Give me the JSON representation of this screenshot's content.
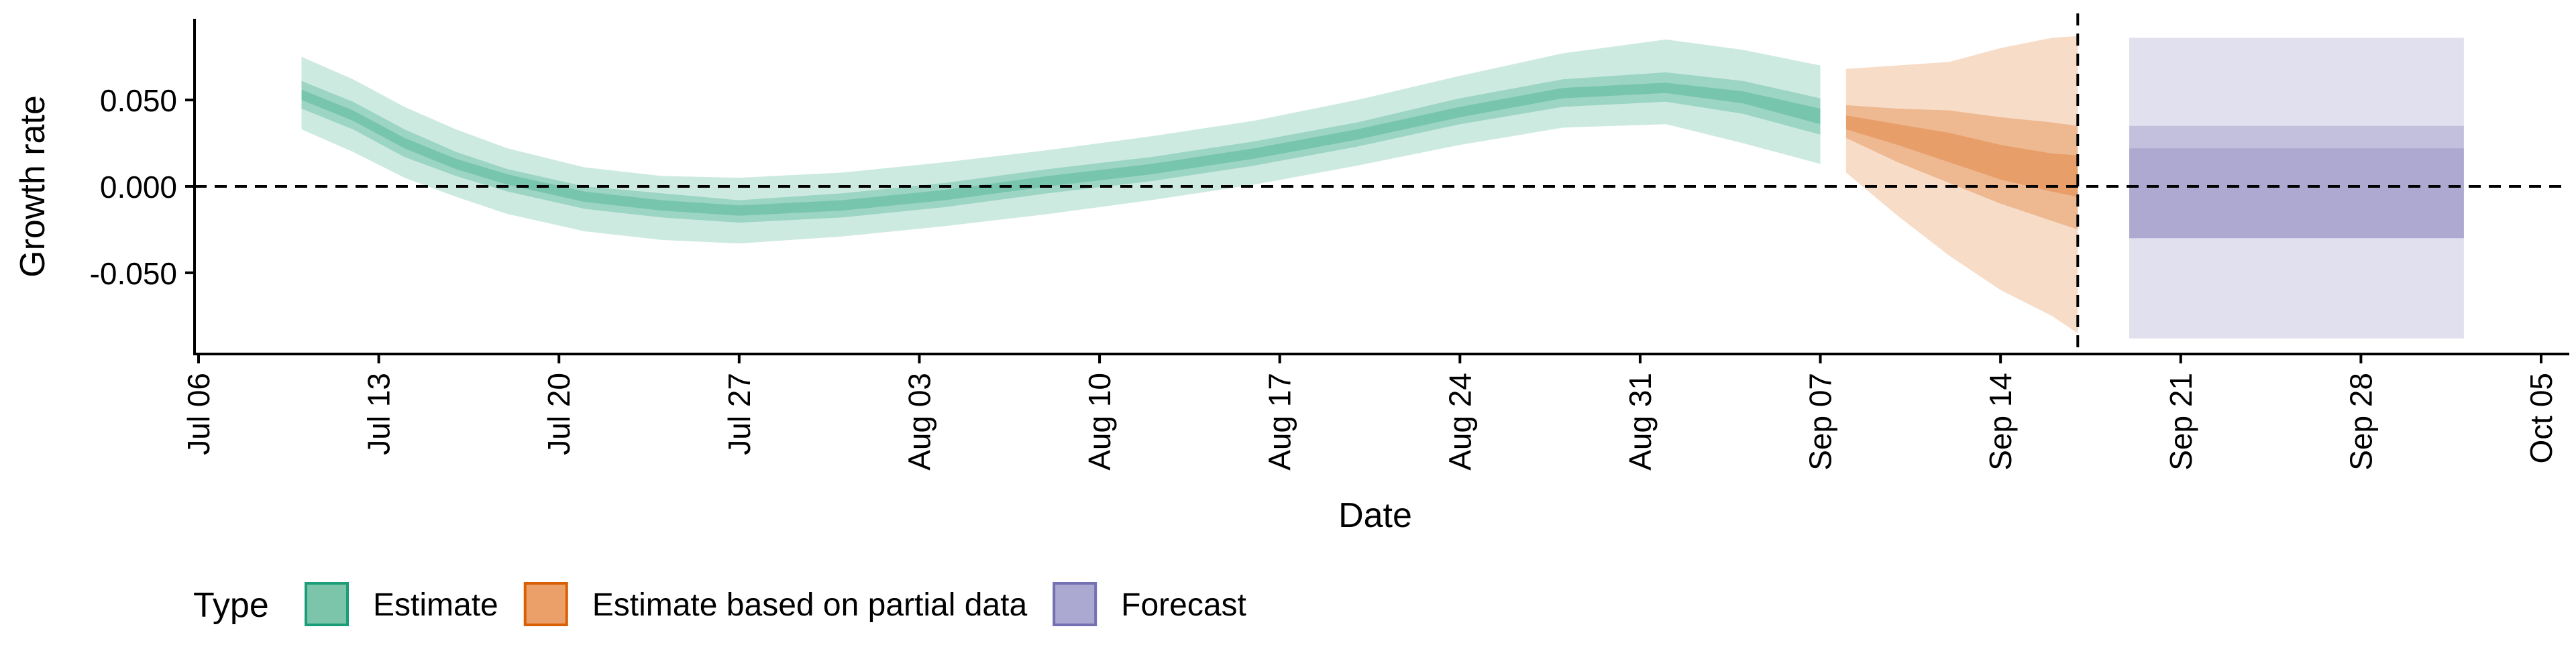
{
  "chart_data": {
    "type": "area",
    "title": "",
    "xlabel": "Date",
    "ylabel": "Growth rate",
    "x_domain": [
      "2020-07-06",
      "2020-10-05"
    ],
    "ylim": [
      -0.097,
      0.097
    ],
    "x_ticks": [
      {
        "date": "2020-07-06",
        "label": "Jul 06"
      },
      {
        "date": "2020-07-13",
        "label": "Jul 13"
      },
      {
        "date": "2020-07-20",
        "label": "Jul 20"
      },
      {
        "date": "2020-07-27",
        "label": "Jul 27"
      },
      {
        "date": "2020-08-03",
        "label": "Aug 03"
      },
      {
        "date": "2020-08-10",
        "label": "Aug 10"
      },
      {
        "date": "2020-08-17",
        "label": "Aug 17"
      },
      {
        "date": "2020-08-24",
        "label": "Aug 24"
      },
      {
        "date": "2020-08-31",
        "label": "Aug 31"
      },
      {
        "date": "2020-09-07",
        "label": "Sep 07"
      },
      {
        "date": "2020-09-14",
        "label": "Sep 14"
      },
      {
        "date": "2020-09-21",
        "label": "Sep 21"
      },
      {
        "date": "2020-09-28",
        "label": "Sep 28"
      },
      {
        "date": "2020-10-05",
        "label": "Oct 05"
      }
    ],
    "y_ticks": [
      {
        "value": 0.05,
        "label": "0.050"
      },
      {
        "value": 0.0,
        "label": "0.000"
      },
      {
        "value": -0.05,
        "label": "-0.050"
      }
    ],
    "reference_lines": {
      "hline_y": 0,
      "vline_date": "2020-09-17"
    },
    "grid": false,
    "legend": {
      "title": "Type",
      "position": "bottom-left",
      "entries": [
        {
          "label": "Estimate",
          "fill": "#7cc5ab",
          "stroke": "#1b9e77"
        },
        {
          "label": "Estimate based on partial data",
          "fill": "#eba06a",
          "stroke": "#d95f02"
        },
        {
          "label": "Forecast",
          "fill": "#aba8d2",
          "stroke": "#7570b3"
        }
      ]
    },
    "series": [
      {
        "name": "Estimate",
        "colors": {
          "outer": "#1b9e77",
          "mid": "#1b9e77",
          "inner": "#1b9e77"
        },
        "points": [
          {
            "date": "2020-07-10",
            "median": 0.053,
            "lo90": 0.033,
            "hi90": 0.075,
            "lo50": 0.045,
            "hi50": 0.061,
            "lo20": 0.05,
            "hi20": 0.056
          },
          {
            "date": "2020-07-12",
            "median": 0.041,
            "lo90": 0.02,
            "hi90": 0.062,
            "lo50": 0.033,
            "hi50": 0.049,
            "lo20": 0.038,
            "hi20": 0.044
          },
          {
            "date": "2020-07-14",
            "median": 0.025,
            "lo90": 0.005,
            "hi90": 0.046,
            "lo50": 0.017,
            "hi50": 0.033,
            "lo20": 0.022,
            "hi20": 0.028
          },
          {
            "date": "2020-07-16",
            "median": 0.013,
            "lo90": -0.006,
            "hi90": 0.033,
            "lo50": 0.006,
            "hi50": 0.02,
            "lo20": 0.01,
            "hi20": 0.016
          },
          {
            "date": "2020-07-18",
            "median": 0.004,
            "lo90": -0.016,
            "hi90": 0.022,
            "lo50": -0.003,
            "hi50": 0.01,
            "lo20": 0.001,
            "hi20": 0.007
          },
          {
            "date": "2020-07-21",
            "median": -0.006,
            "lo90": -0.026,
            "hi90": 0.011,
            "lo50": -0.013,
            "hi50": 0.0,
            "lo20": -0.009,
            "hi20": -0.003
          },
          {
            "date": "2020-07-24",
            "median": -0.011,
            "lo90": -0.031,
            "hi90": 0.006,
            "lo50": -0.018,
            "hi50": -0.004,
            "lo20": -0.014,
            "hi20": -0.008
          },
          {
            "date": "2020-07-27",
            "median": -0.014,
            "lo90": -0.033,
            "hi90": 0.005,
            "lo50": -0.021,
            "hi50": -0.008,
            "lo20": -0.017,
            "hi20": -0.011
          },
          {
            "date": "2020-07-31",
            "median": -0.011,
            "lo90": -0.029,
            "hi90": 0.008,
            "lo50": -0.018,
            "hi50": -0.004,
            "lo20": -0.014,
            "hi20": -0.008
          },
          {
            "date": "2020-08-04",
            "median": -0.005,
            "lo90": -0.023,
            "hi90": 0.014,
            "lo50": -0.012,
            "hi50": 0.002,
            "lo20": -0.008,
            "hi20": -0.002
          },
          {
            "date": "2020-08-08",
            "median": 0.003,
            "lo90": -0.016,
            "hi90": 0.021,
            "lo50": -0.004,
            "hi50": 0.01,
            "lo20": 0.0,
            "hi20": 0.006
          },
          {
            "date": "2020-08-12",
            "median": 0.01,
            "lo90": -0.008,
            "hi90": 0.029,
            "lo50": 0.003,
            "hi50": 0.017,
            "lo20": 0.007,
            "hi20": 0.013
          },
          {
            "date": "2020-08-16",
            "median": 0.019,
            "lo90": 0.001,
            "hi90": 0.038,
            "lo50": 0.012,
            "hi50": 0.026,
            "lo20": 0.016,
            "hi20": 0.022
          },
          {
            "date": "2020-08-20",
            "median": 0.03,
            "lo90": 0.012,
            "hi90": 0.05,
            "lo50": 0.023,
            "hi50": 0.037,
            "lo20": 0.027,
            "hi20": 0.033
          },
          {
            "date": "2020-08-24",
            "median": 0.043,
            "lo90": 0.024,
            "hi90": 0.064,
            "lo50": 0.036,
            "hi50": 0.051,
            "lo20": 0.04,
            "hi20": 0.046
          },
          {
            "date": "2020-08-28",
            "median": 0.054,
            "lo90": 0.034,
            "hi90": 0.077,
            "lo50": 0.046,
            "hi50": 0.062,
            "lo20": 0.051,
            "hi20": 0.057
          },
          {
            "date": "2020-09-01",
            "median": 0.057,
            "lo90": 0.036,
            "hi90": 0.085,
            "lo50": 0.049,
            "hi50": 0.066,
            "lo20": 0.054,
            "hi20": 0.06
          },
          {
            "date": "2020-09-04",
            "median": 0.051,
            "lo90": 0.025,
            "hi90": 0.079,
            "lo50": 0.042,
            "hi50": 0.061,
            "lo20": 0.048,
            "hi20": 0.055
          },
          {
            "date": "2020-09-07",
            "median": 0.04,
            "lo90": 0.013,
            "hi90": 0.07,
            "lo50": 0.03,
            "hi50": 0.051,
            "lo20": 0.036,
            "hi20": 0.045
          }
        ]
      },
      {
        "name": "Estimate based on partial data",
        "colors": {
          "outer": "#d95f02",
          "mid": "#d95f02",
          "inner": "#d95f02"
        },
        "points": [
          {
            "date": "2020-09-08",
            "median": 0.037,
            "lo90": 0.008,
            "hi90": 0.068,
            "lo50": 0.028,
            "hi50": 0.047,
            "lo20": 0.033,
            "hi20": 0.041
          },
          {
            "date": "2020-09-10",
            "median": 0.03,
            "lo90": -0.017,
            "hi90": 0.07,
            "lo50": 0.014,
            "hi50": 0.045,
            "lo20": 0.024,
            "hi20": 0.036
          },
          {
            "date": "2020-09-12",
            "median": 0.022,
            "lo90": -0.04,
            "hi90": 0.072,
            "lo50": 0.002,
            "hi50": 0.044,
            "lo20": 0.014,
            "hi20": 0.031
          },
          {
            "date": "2020-09-14",
            "median": 0.014,
            "lo90": -0.06,
            "hi90": 0.08,
            "lo50": -0.01,
            "hi50": 0.04,
            "lo20": 0.004,
            "hi20": 0.024
          },
          {
            "date": "2020-09-16",
            "median": 0.008,
            "lo90": -0.075,
            "hi90": 0.086,
            "lo50": -0.02,
            "hi50": 0.037,
            "lo20": -0.003,
            "hi20": 0.019
          },
          {
            "date": "2020-09-17",
            "median": 0.006,
            "lo90": -0.085,
            "hi90": 0.087,
            "lo50": -0.025,
            "hi50": 0.035,
            "lo20": -0.006,
            "hi20": 0.018
          }
        ]
      },
      {
        "name": "Forecast",
        "colors": {
          "outer": "#7570b3",
          "mid": "#7570b3",
          "inner": "#7570b3"
        },
        "points": [
          {
            "date": "2020-09-19",
            "median": 0.0,
            "lo90": -0.088,
            "hi90": 0.086,
            "lo50": -0.03,
            "hi50": 0.035,
            "lo20": -0.03,
            "hi20": 0.022
          },
          {
            "date": "2020-10-02",
            "median": 0.0,
            "lo90": -0.088,
            "hi90": 0.086,
            "lo50": -0.03,
            "hi50": 0.035,
            "lo20": -0.03,
            "hi20": 0.022
          }
        ]
      }
    ]
  }
}
